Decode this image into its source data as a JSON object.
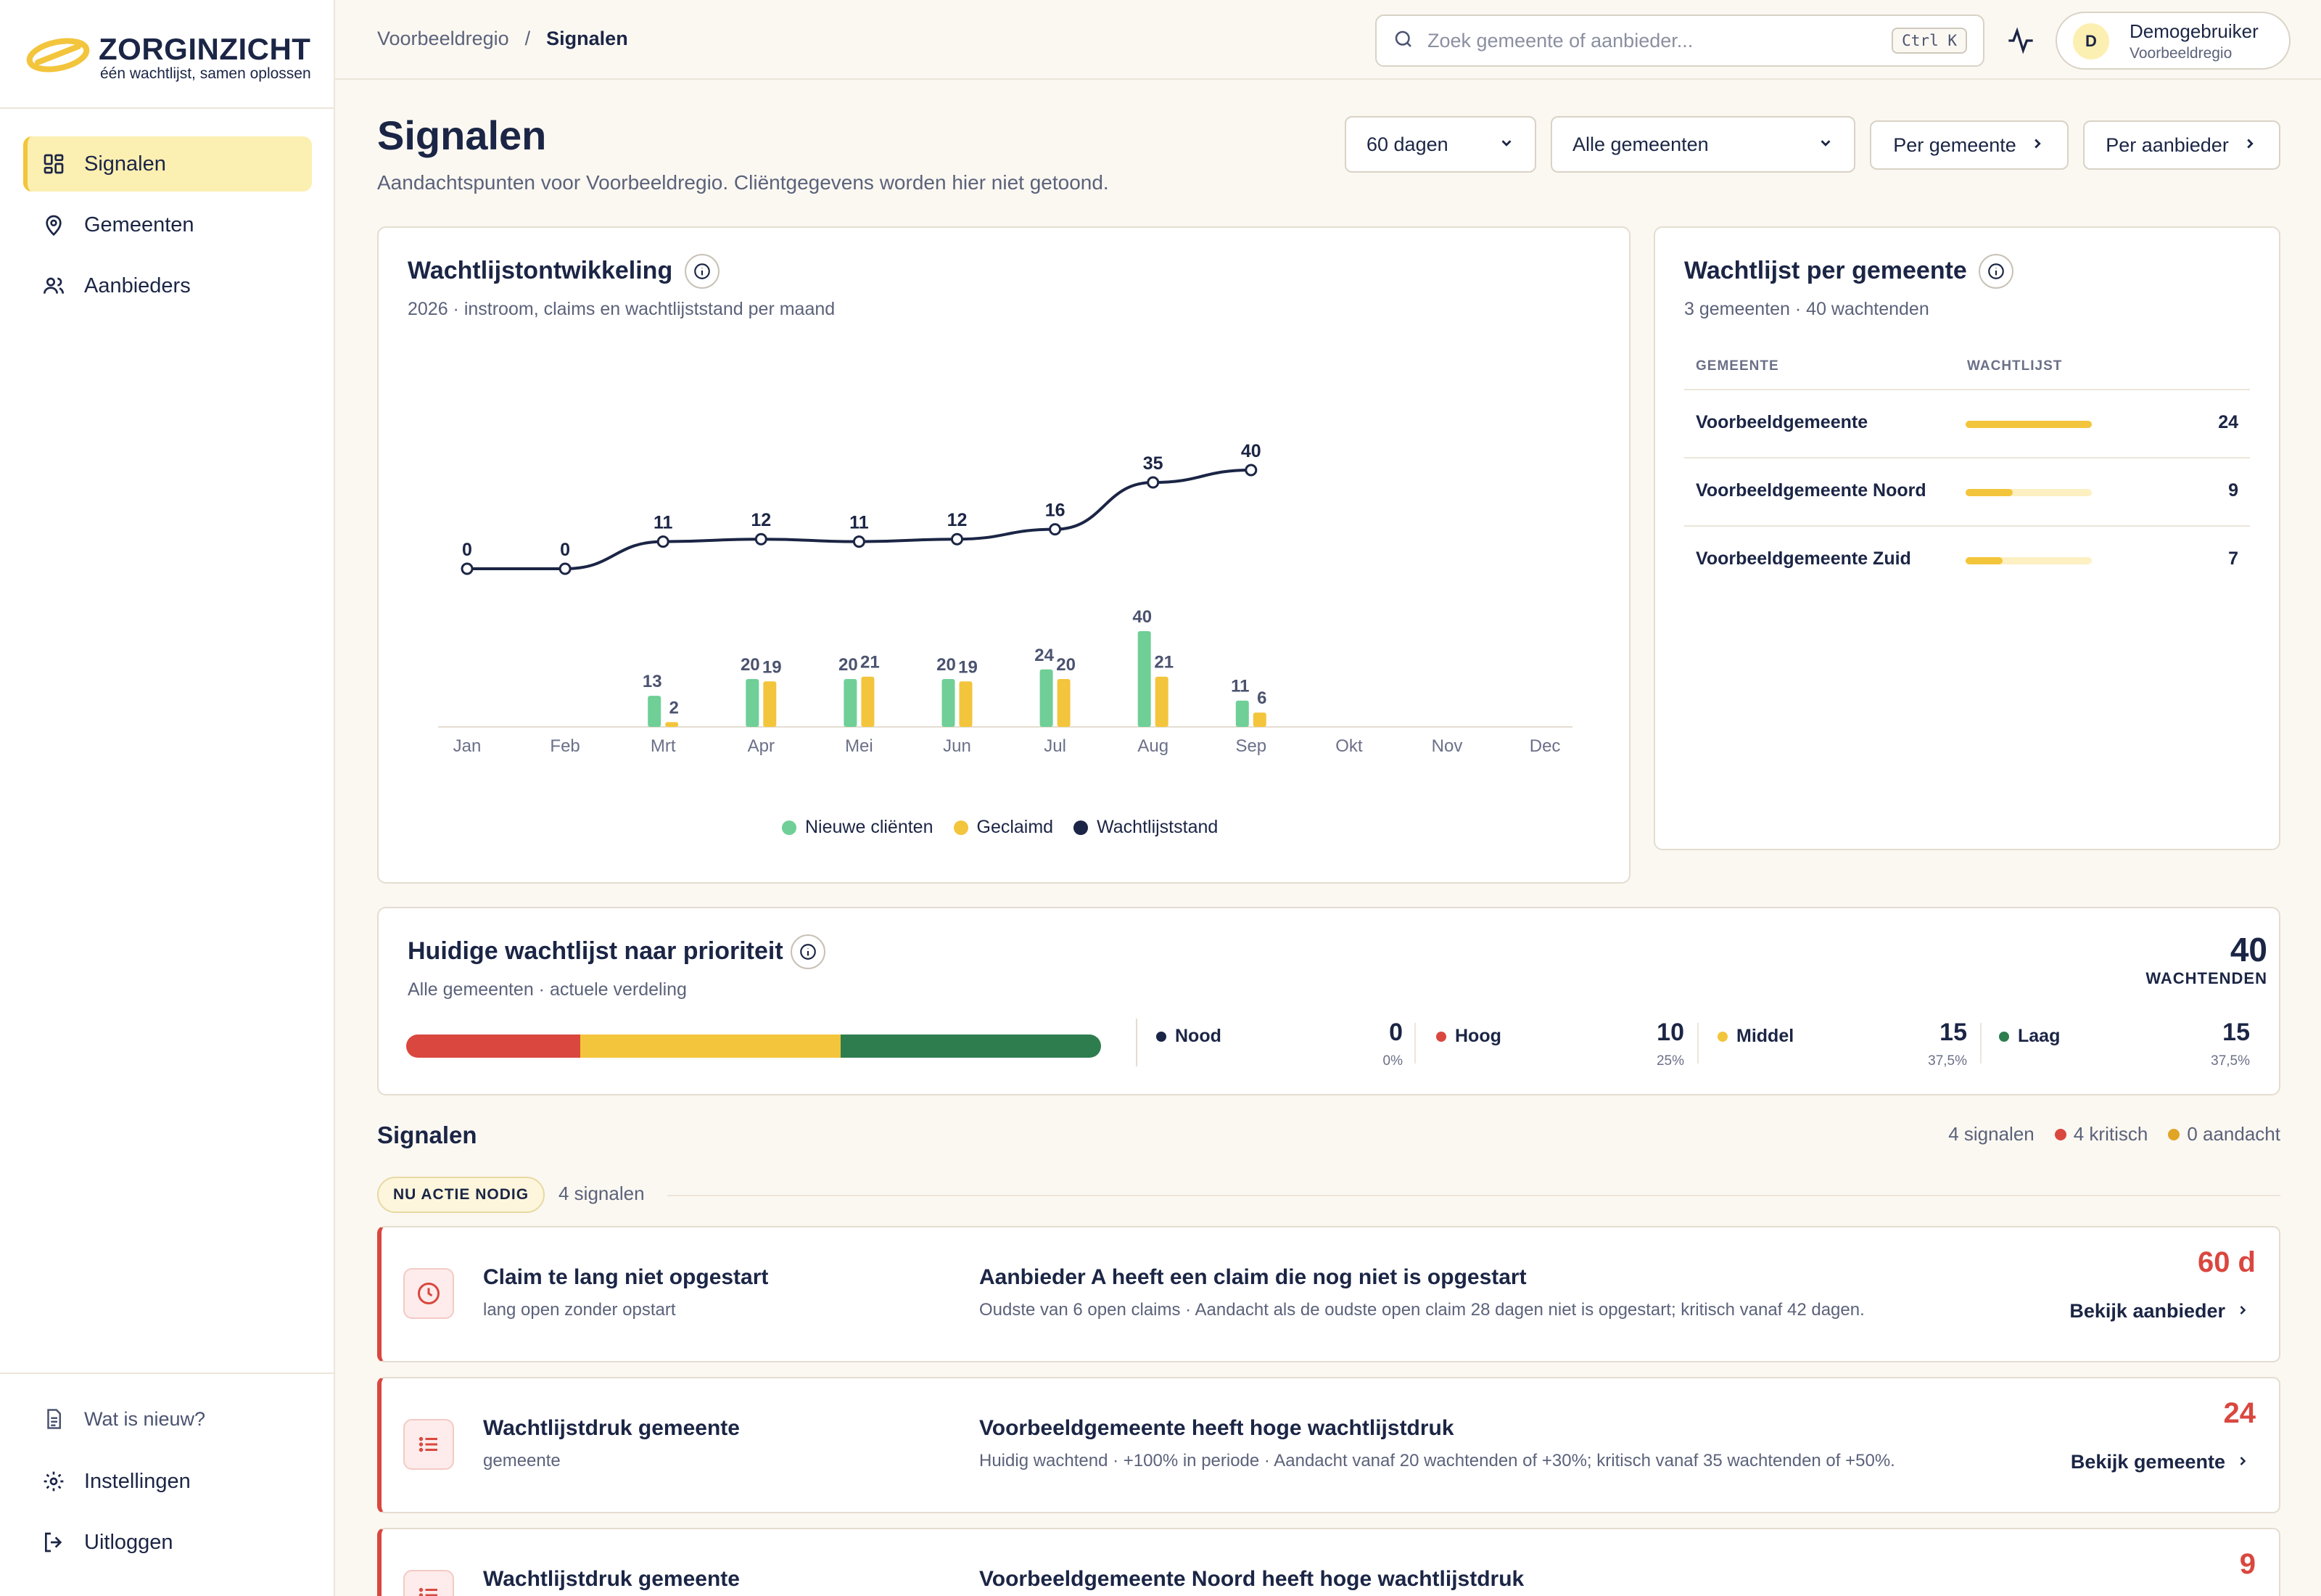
{
  "brand": {
    "name": "ZORGINZICHT",
    "tagline": "één wachtlijst, samen oplossen"
  },
  "sidebar": {
    "items": [
      {
        "label": "Signalen",
        "icon": "dashboard-icon",
        "active": true
      },
      {
        "label": "Gemeenten",
        "icon": "map-pin-icon"
      },
      {
        "label": "Aanbieders",
        "icon": "users-icon"
      }
    ],
    "bottom": [
      {
        "label": "Wat is nieuw?",
        "icon": "document-icon"
      },
      {
        "label": "Instellingen",
        "icon": "gear-icon"
      },
      {
        "label": "Uitloggen",
        "icon": "logout-icon"
      }
    ]
  },
  "topbar": {
    "breadcrumb": [
      "Voorbeeldregio",
      "Signalen"
    ],
    "breadcrumb_sep": "/",
    "search_placeholder": "Zoek gemeente of aanbieder...",
    "search_shortcut": "Ctrl K",
    "user": {
      "initial": "D",
      "name": "Demogebruiker",
      "region": "Voorbeeldregio"
    }
  },
  "page": {
    "title": "Signalen",
    "subtitle": "Aandachtspunten voor Voorbeeldregio. Cliëntgegevens worden hier niet getoond.",
    "period_select": "60 dagen",
    "municipality_select": "Alle gemeenten",
    "btn_per_gemeente": "Per gemeente",
    "btn_per_aanbieder": "Per aanbieder"
  },
  "trend_card": {
    "title": "Wachtlijstontwikkeling",
    "subtitle": "2026 · instroom, claims en wachtlijststand per maand",
    "legend": [
      "Nieuwe cliënten",
      "Geclaimd",
      "Wachtlijststand"
    ]
  },
  "colors": {
    "new_clients": "#6fcf97",
    "claimed": "#f3c53c",
    "waitlist_line": "#1b2545",
    "nood": "#1b2545",
    "hoog": "#d9473f",
    "middel": "#f3c53c",
    "laag": "#2e7d4f",
    "critical": "#d9473f",
    "attention": "#e0a526"
  },
  "chart_data": {
    "type": "bar",
    "categories": [
      "Jan",
      "Feb",
      "Mrt",
      "Apr",
      "Mei",
      "Jun",
      "Jul",
      "Aug",
      "Sep",
      "Okt",
      "Nov",
      "Dec"
    ],
    "series": [
      {
        "name": "Nieuwe cliënten",
        "type": "bar",
        "values": [
          null,
          null,
          13,
          20,
          20,
          20,
          24,
          40,
          11,
          null,
          null,
          null
        ]
      },
      {
        "name": "Geclaimd",
        "type": "bar",
        "values": [
          null,
          null,
          2,
          19,
          21,
          19,
          20,
          21,
          6,
          null,
          null,
          null
        ]
      },
      {
        "name": "Wachtlijststand",
        "type": "line",
        "values": [
          0,
          0,
          11,
          12,
          11,
          12,
          16,
          35,
          40,
          null,
          null,
          null
        ]
      }
    ],
    "legend_position": "bottom",
    "grid": false
  },
  "municipality_card": {
    "title": "Wachtlijst per gemeente",
    "subtitle": "3 gemeenten · 40 wachtenden",
    "col_name": "GEMEENTE",
    "col_value": "WACHTLIJST",
    "max": 24,
    "rows": [
      {
        "name": "Voorbeeldgemeente",
        "value": 24
      },
      {
        "name": "Voorbeeldgemeente Noord",
        "value": 9
      },
      {
        "name": "Voorbeeldgemeente Zuid",
        "value": 7
      }
    ]
  },
  "priority_card": {
    "title": "Huidige wachtlijst naar prioriteit",
    "subtitle": "Alle gemeenten · actuele verdeling",
    "total": "40",
    "total_label": "WACHTENDEN",
    "items": [
      {
        "label": "Nood",
        "count": "0",
        "pct": "0%",
        "share": 0
      },
      {
        "label": "Hoog",
        "count": "10",
        "pct": "25%",
        "share": 0.25
      },
      {
        "label": "Middel",
        "count": "15",
        "pct": "37,5%",
        "share": 0.375
      },
      {
        "label": "Laag",
        "count": "15",
        "pct": "37,5%",
        "share": 0.375
      }
    ]
  },
  "signals": {
    "title": "Signalen",
    "summary_total": "4 signalen",
    "summary_critical": "4 kritisch",
    "summary_attention": "0 aandacht",
    "group_label": "NU ACTIE NODIG",
    "group_count": "4 signalen",
    "items": [
      {
        "type": "Claim te lang niet opgestart",
        "type_sub": "lang open zonder opstart",
        "headline": "Aanbieder A heeft een claim die nog niet is opgestart",
        "desc": "Oudste van 6 open claims · Aandacht als de oudste open claim 28 dagen niet is opgestart; kritisch vanaf 42 dagen.",
        "metric": "60 d",
        "link": "Bekijk aanbieder",
        "icon": "clock-icon"
      },
      {
        "type": "Wachtlijstdruk gemeente",
        "type_sub": "gemeente",
        "headline": "Voorbeeldgemeente heeft hoge wachtlijstdruk",
        "desc": "Huidig wachtend · +100% in periode · Aandacht vanaf 20 wachtenden of +30%; kritisch vanaf 35 wachtenden of +50%.",
        "metric": "24",
        "link": "Bekijk gemeente",
        "icon": "list-icon"
      },
      {
        "type": "Wachtlijstdruk gemeente",
        "type_sub": "",
        "headline": "Voorbeeldgemeente Noord heeft hoge wachtlijstdruk",
        "desc": "",
        "metric": "9",
        "link": "",
        "icon": "list-icon"
      }
    ]
  }
}
